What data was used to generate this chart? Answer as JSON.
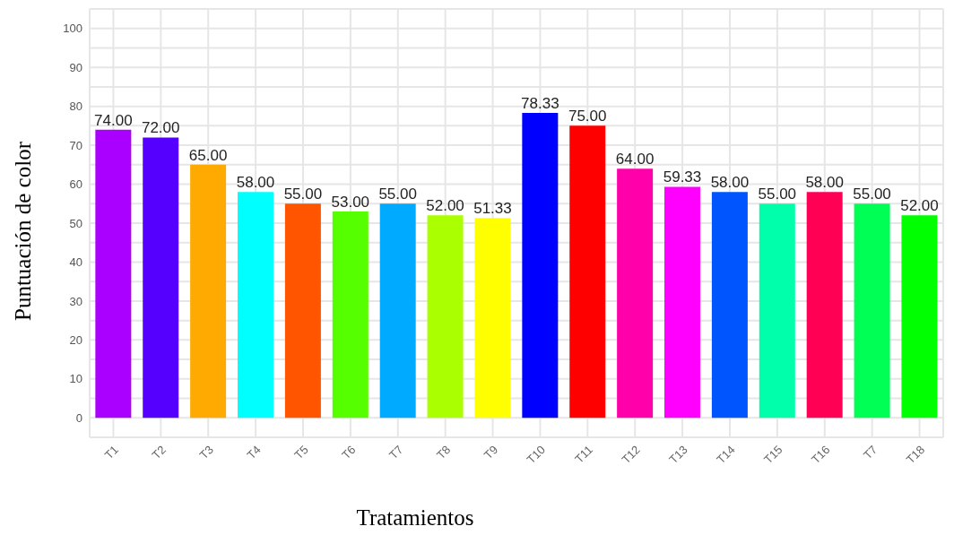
{
  "chart_data": {
    "type": "bar",
    "xlabel": "Tratamientos",
    "ylabel": "Puntuación de color",
    "categories": [
      "T1",
      "T2",
      "T3",
      "T4",
      "T5",
      "T6",
      "T7",
      "T8",
      "T9",
      "T10",
      "T11",
      "T12",
      "T13",
      "T14",
      "T15",
      "T16",
      "T7",
      "T18"
    ],
    "values": [
      74,
      72,
      65,
      58,
      55,
      53,
      55,
      52,
      51.33,
      78.33,
      75,
      64,
      59.33,
      58,
      55,
      58,
      55,
      52
    ],
    "value_labels": [
      "74.00",
      "72.00",
      "65.00",
      "58.00",
      "55.00",
      "53.00",
      "55.00",
      "52.00",
      "51.33",
      "78.33",
      "75.00",
      "64.00",
      "59.33",
      "58.00",
      "55.00",
      "58.00",
      "55.00",
      "52.00"
    ],
    "colors": [
      "#aa00ff",
      "#5500ff",
      "#ffaa00",
      "#00ffff",
      "#ff5500",
      "#55ff00",
      "#00aaff",
      "#aaff00",
      "#ffff00",
      "#0000ff",
      "#ff0000",
      "#ff00aa",
      "#ff00ff",
      "#0055ff",
      "#00ffaa",
      "#ff0055",
      "#00ff55",
      "#00ff00"
    ],
    "ylim": [
      -5,
      105
    ],
    "yticks": [
      0,
      {
        "value": 5,
        "label": null
      },
      10,
      {
        "value": 15,
        "label": null
      },
      20,
      {
        "value": 25,
        "label": null
      },
      30,
      {
        "value": 35,
        "label": null
      },
      40,
      {
        "value": 45,
        "label": null
      },
      50,
      {
        "value": 55,
        "label": null
      },
      60,
      {
        "value": 65,
        "label": null
      },
      70,
      {
        "value": 75,
        "label": null
      },
      80,
      {
        "value": 85,
        "label": null
      },
      90,
      {
        "value": 95,
        "label": null
      },
      100
    ],
    "grid": true
  }
}
